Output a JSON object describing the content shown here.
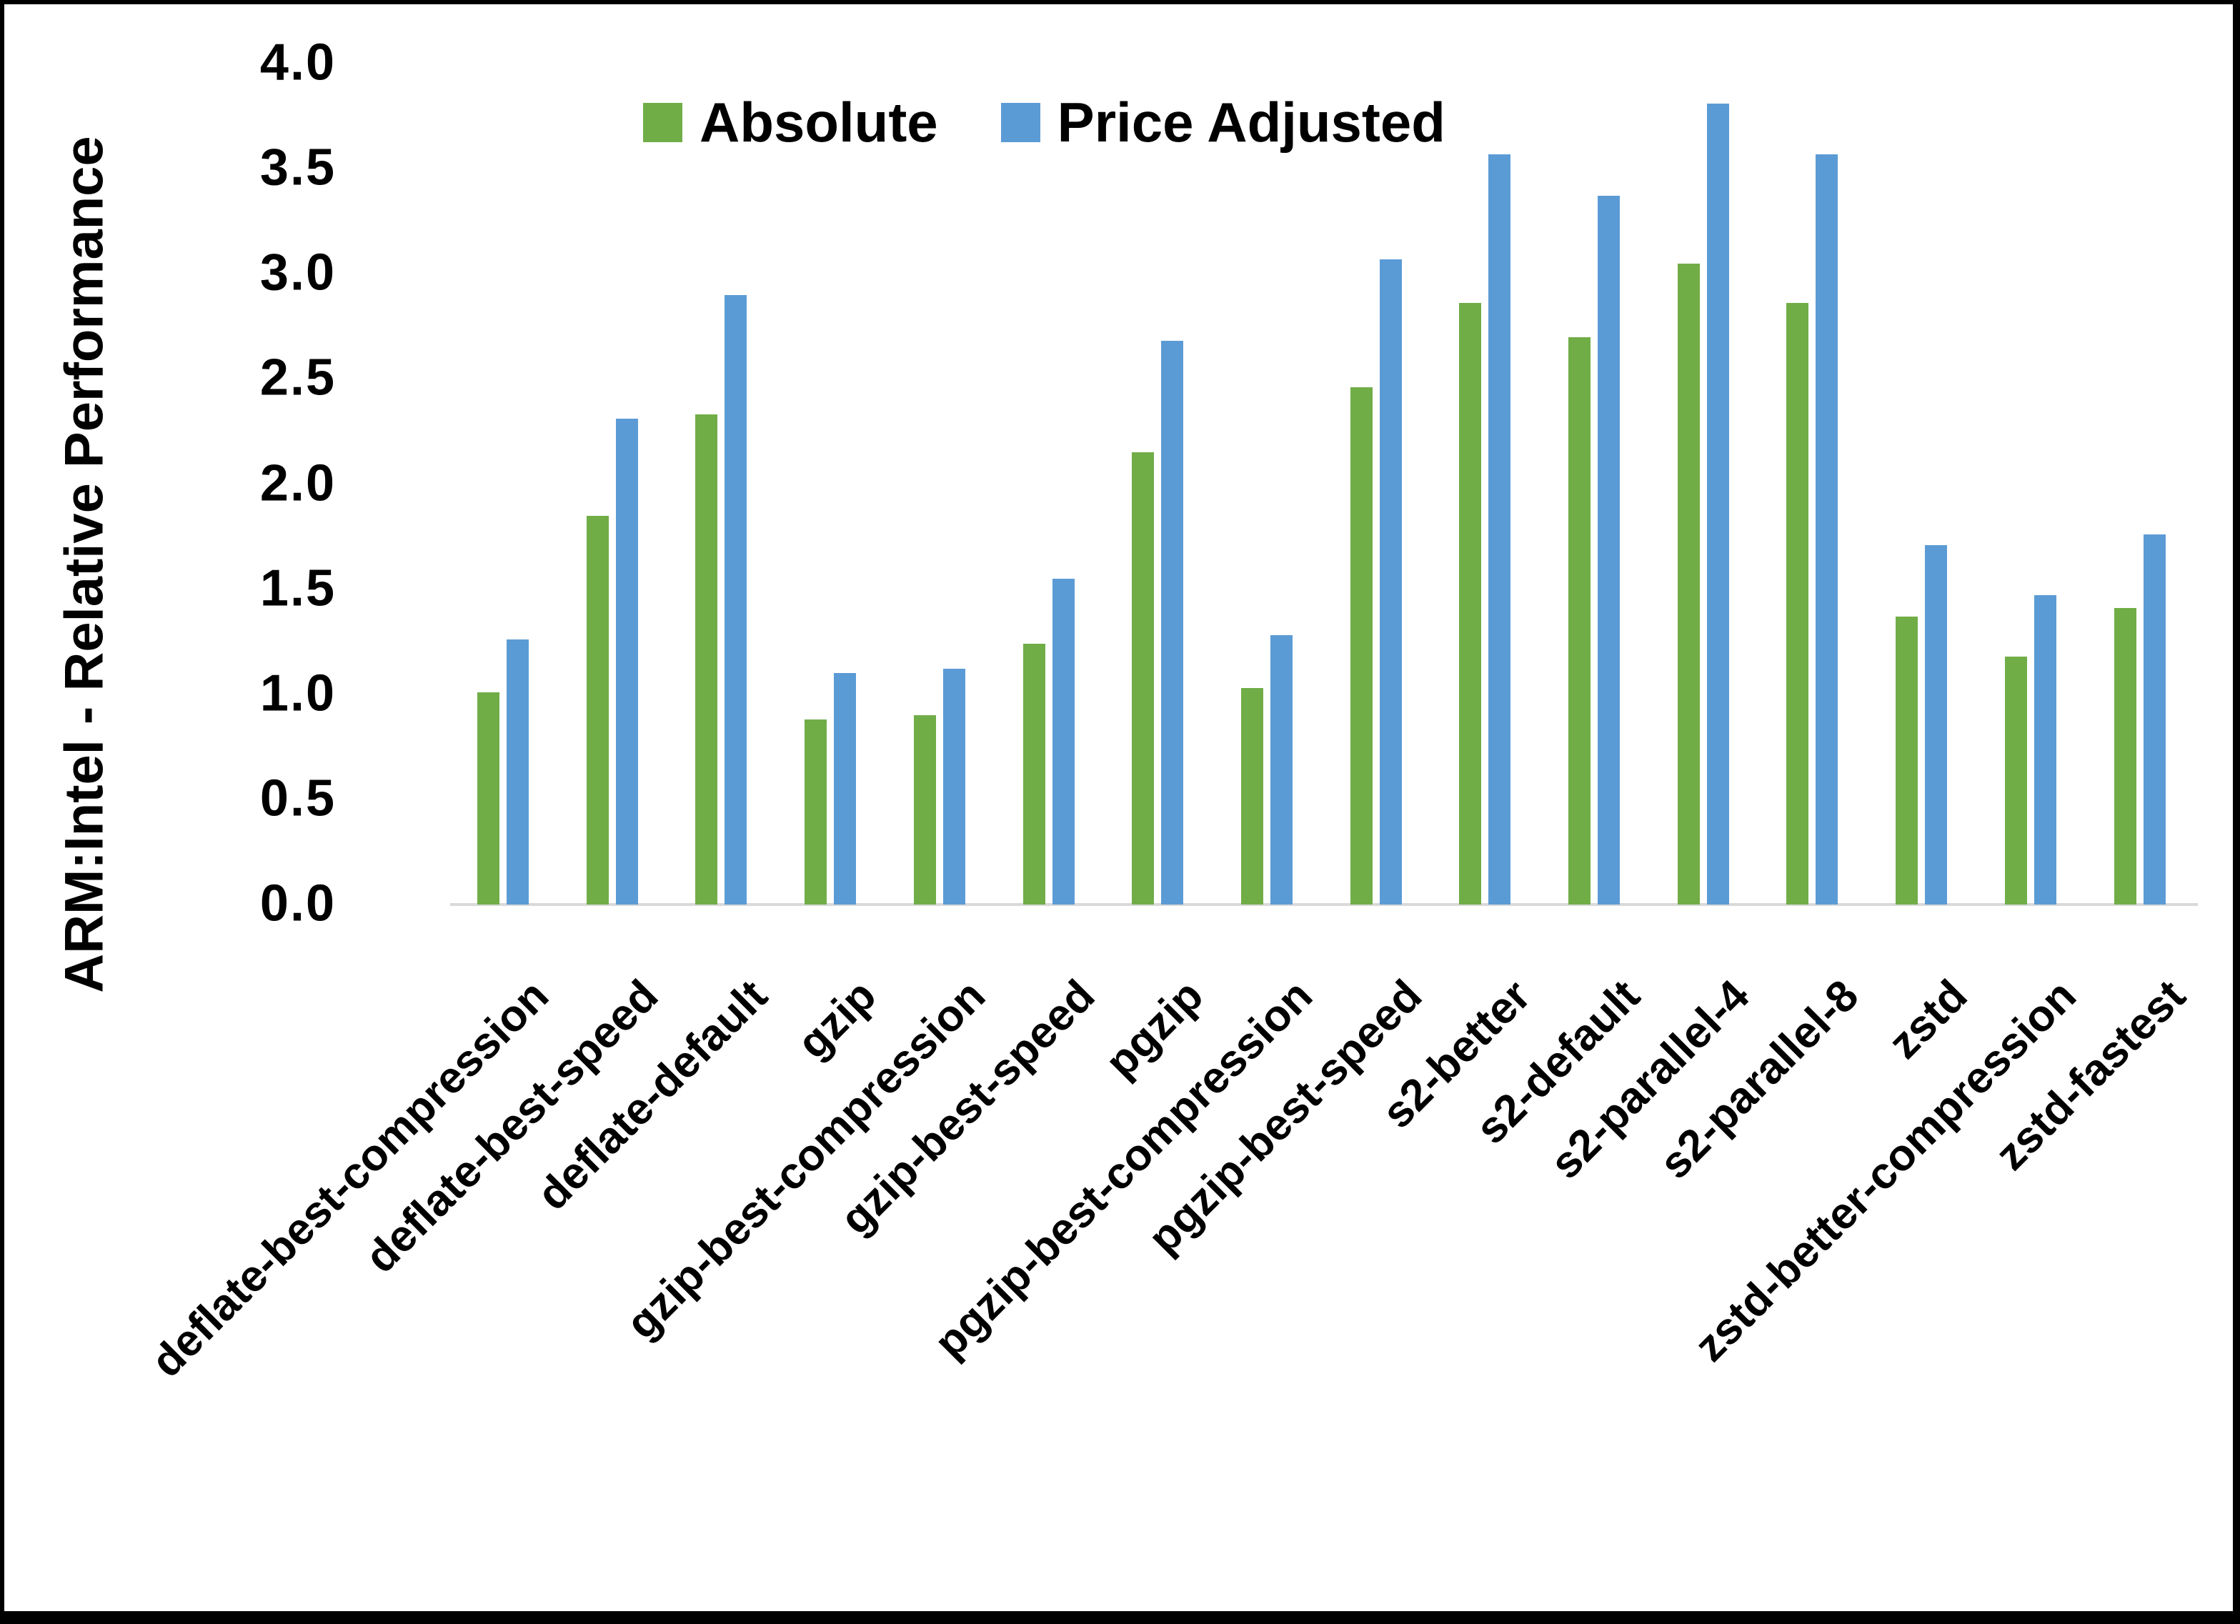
{
  "chart_data": {
    "type": "bar",
    "title": "",
    "xlabel": "",
    "ylabel": "ARM:Intel - Relative Performance",
    "ylim": [
      0.0,
      4.0
    ],
    "ytick_step": 0.5,
    "yticks": [
      "0.0",
      "0.5",
      "1.0",
      "1.5",
      "2.0",
      "2.5",
      "3.0",
      "3.5",
      "4.0"
    ],
    "grid": false,
    "legend_position": "top-center",
    "axis_line_color": "#d9d9d9",
    "categories": [
      "deflate-best-compression",
      "deflate-best-speed",
      "deflate-default",
      "gzip",
      "gzip-best-compression",
      "gzip-best-speed",
      "pgzip",
      "pgzip-best-compression",
      "pgzip-best-speed",
      "s2-better",
      "s2-default",
      "s2-parallel-4",
      "s2-parallel-8",
      "zstd",
      "zstd-better-compression",
      "zstd-fastest"
    ],
    "series": [
      {
        "name": "Absolute",
        "color": "#70ad47",
        "values": [
          1.01,
          1.85,
          2.33,
          0.88,
          0.9,
          1.24,
          2.15,
          1.03,
          2.46,
          2.86,
          2.7,
          3.05,
          2.86,
          1.37,
          1.18,
          1.41
        ]
      },
      {
        "name": "Price Adjusted",
        "color": "#5b9bd5",
        "values": [
          1.26,
          2.31,
          2.9,
          1.1,
          1.12,
          1.55,
          2.68,
          1.28,
          3.07,
          3.57,
          3.37,
          3.81,
          3.57,
          1.71,
          1.47,
          1.76
        ]
      }
    ]
  }
}
